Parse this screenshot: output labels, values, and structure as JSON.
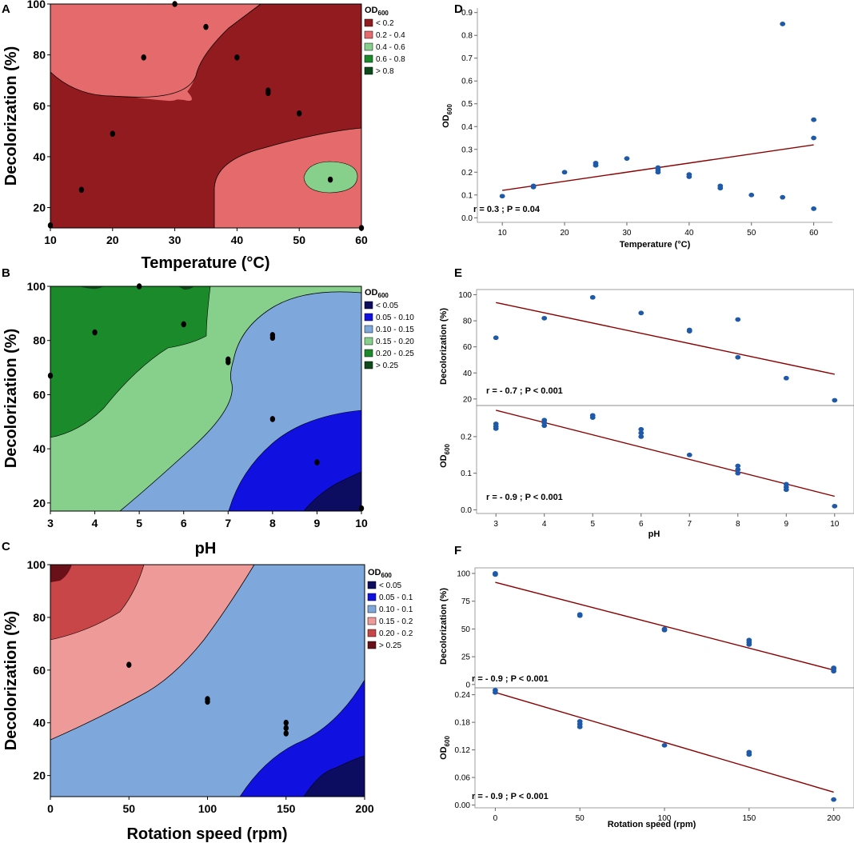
{
  "colors": {
    "od_temp": [
      "#921b1f",
      "#e56a6b",
      "#86d08c",
      "#1a8a2a",
      "#0c4a1a"
    ],
    "od_ph": [
      "#0c0c60",
      "#1010e0",
      "#7ea8dc",
      "#86d08c",
      "#1a8a2a",
      "#0e4a1a"
    ],
    "od_rot": [
      "#0c0c60",
      "#1010e0",
      "#7ea8dc",
      "#ee9a98",
      "#c84647",
      "#6a1018"
    ],
    "point": "#1f5aa8",
    "line": "#8b0000"
  },
  "chart_data": [
    {
      "panel": "A",
      "type": "contour",
      "xlabel": "Temperature (°C)",
      "ylabel": "Decolorization (%)",
      "xlim": [
        10,
        60
      ],
      "ylim": [
        12,
        100
      ],
      "xticks": [
        "10",
        "20",
        "30",
        "40",
        "50",
        "60"
      ],
      "yticks": [
        "20",
        "40",
        "60",
        "80",
        "100"
      ],
      "legend_title_main": "OD",
      "legend_title_sub": "600",
      "legend_labels": [
        "< 0.2",
        "0.2 - 0.4",
        "0.4 - 0.6",
        "0.6 - 0.8",
        "> 0.8"
      ],
      "points": [
        [
          10,
          13
        ],
        [
          15,
          27
        ],
        [
          20,
          49
        ],
        [
          25,
          79
        ],
        [
          30,
          100
        ],
        [
          35,
          91
        ],
        [
          40,
          79
        ],
        [
          45,
          66
        ],
        [
          45,
          65
        ],
        [
          50,
          57
        ],
        [
          55,
          31
        ],
        [
          60,
          12
        ]
      ]
    },
    {
      "panel": "B",
      "type": "contour",
      "xlabel": "pH",
      "ylabel": "Decolorization (%)",
      "xlim": [
        3,
        10
      ],
      "ylim": [
        17,
        100
      ],
      "xticks": [
        "3",
        "4",
        "5",
        "6",
        "7",
        "8",
        "9",
        "10"
      ],
      "yticks": [
        "20",
        "40",
        "60",
        "80",
        "100"
      ],
      "legend_title_main": "OD",
      "legend_title_sub": "600",
      "legend_labels": [
        "< 0.05",
        "0.05 - 0.10",
        "0.10 - 0.15",
        "0.15 - 0.20",
        "0.20 - 0.25",
        "> 0.25"
      ],
      "points": [
        [
          3,
          67
        ],
        [
          4,
          83
        ],
        [
          5,
          100
        ],
        [
          6,
          86
        ],
        [
          7,
          72
        ],
        [
          7,
          73
        ],
        [
          8,
          81
        ],
        [
          8,
          82
        ],
        [
          8,
          51
        ],
        [
          9,
          35
        ],
        [
          10,
          18
        ]
      ]
    },
    {
      "panel": "C",
      "type": "contour",
      "xlabel": "Rotation speed (rpm)",
      "ylabel": "Decolorization (%)",
      "xlim": [
        0,
        200
      ],
      "ylim": [
        12,
        100
      ],
      "xticks": [
        "0",
        "50",
        "100",
        "150",
        "200"
      ],
      "yticks": [
        "20",
        "40",
        "60",
        "80",
        "100"
      ],
      "legend_title_main": "OD",
      "legend_title_sub": "600",
      "legend_labels": [
        "< 0.05",
        "0.05 - 0.1",
        "0.10 - 0.1",
        "0.15 - 0.2",
        "0.20 - 0.2",
        "> 0.25"
      ],
      "points": [
        [
          50,
          62
        ],
        [
          100,
          49
        ],
        [
          100,
          48
        ],
        [
          150,
          40
        ],
        [
          150,
          38
        ],
        [
          150,
          36
        ]
      ]
    },
    {
      "panel": "D",
      "type": "scatter",
      "xlabel": "Temperature (°C)",
      "ylabel_main": "OD",
      "ylabel_sub": "600",
      "xlim": [
        6,
        63
      ],
      "ylim": [
        -0.02,
        0.92
      ],
      "xticks": [
        10,
        20,
        30,
        40,
        50,
        60
      ],
      "yticks": [
        0.0,
        0.1,
        0.2,
        0.3,
        0.4,
        0.5,
        0.6,
        0.7,
        0.8,
        0.9
      ],
      "ytick_labels": [
        "0.0",
        "0.1",
        "0.2",
        "0.3",
        "0.4",
        "0.5",
        "0.6",
        "0.7",
        "0.8",
        "0.9"
      ],
      "annotation": "r = 0.3 ; P = 0.04",
      "points": [
        [
          10,
          0.095
        ],
        [
          15,
          0.135
        ],
        [
          15,
          0.14
        ],
        [
          20,
          0.2
        ],
        [
          25,
          0.24
        ],
        [
          25,
          0.23
        ],
        [
          30,
          0.26
        ],
        [
          35,
          0.22
        ],
        [
          35,
          0.21
        ],
        [
          35,
          0.2
        ],
        [
          40,
          0.19
        ],
        [
          40,
          0.18
        ],
        [
          45,
          0.14
        ],
        [
          45,
          0.13
        ],
        [
          50,
          0.1
        ],
        [
          55,
          0.85
        ],
        [
          55,
          0.09
        ],
        [
          60,
          0.43
        ],
        [
          60,
          0.35
        ],
        [
          60,
          0.04
        ]
      ],
      "fit": [
        [
          10,
          0.12
        ],
        [
          60,
          0.32
        ]
      ]
    },
    {
      "panel": "E-top",
      "type": "scatter",
      "xlabel": "",
      "ylabel": "Decolorization (%)",
      "xlim": [
        2.6,
        10.4
      ],
      "ylim": [
        15,
        104
      ],
      "xticks": [
        3,
        4,
        5,
        6,
        7,
        8,
        9,
        10
      ],
      "yticks": [
        20,
        40,
        60,
        80,
        100
      ],
      "ytick_labels": [
        "20",
        "40",
        "60",
        "80",
        "100"
      ],
      "annotation": "r = - 0.7 ; P < 0.001",
      "points": [
        [
          3,
          67
        ],
        [
          4,
          82
        ],
        [
          5,
          98
        ],
        [
          6,
          86
        ],
        [
          7,
          73
        ],
        [
          7,
          72
        ],
        [
          8,
          81
        ],
        [
          8,
          52
        ],
        [
          9,
          36
        ],
        [
          10,
          19
        ]
      ],
      "fit": [
        [
          3,
          94
        ],
        [
          10,
          39
        ]
      ]
    },
    {
      "panel": "E-bottom",
      "type": "scatter",
      "xlabel": "pH",
      "ylabel_main": "OD",
      "ylabel_sub": "600",
      "xlim": [
        2.6,
        10.4
      ],
      "ylim": [
        -0.01,
        0.285
      ],
      "xticks": [
        3,
        4,
        5,
        6,
        7,
        8,
        9,
        10
      ],
      "xtick_labels": [
        "3",
        "4",
        "5",
        "6",
        "7",
        "8",
        "9",
        "10"
      ],
      "yticks": [
        0.0,
        0.1,
        0.2
      ],
      "ytick_labels": [
        "0.0",
        "0.1",
        "0.2"
      ],
      "annotation": "r = - 0.9 ; P < 0.001",
      "points": [
        [
          3,
          0.235
        ],
        [
          3,
          0.228
        ],
        [
          3,
          0.222
        ],
        [
          4,
          0.245
        ],
        [
          4,
          0.238
        ],
        [
          4,
          0.23
        ],
        [
          5,
          0.258
        ],
        [
          5,
          0.252
        ],
        [
          6,
          0.22
        ],
        [
          6,
          0.21
        ],
        [
          6,
          0.2
        ],
        [
          7,
          0.15
        ],
        [
          8,
          0.12
        ],
        [
          8,
          0.11
        ],
        [
          8,
          0.1
        ],
        [
          9,
          0.07
        ],
        [
          9,
          0.062
        ],
        [
          9,
          0.055
        ],
        [
          10,
          0.01
        ]
      ],
      "fit": [
        [
          3,
          0.272
        ],
        [
          10,
          0.037
        ]
      ]
    },
    {
      "panel": "F-top",
      "type": "scatter",
      "xlabel": "",
      "ylabel": "Decolorization (%)",
      "xlim": [
        -12,
        212
      ],
      "ylim": [
        -3,
        105
      ],
      "xticks": [
        0,
        50,
        100,
        150,
        200
      ],
      "yticks": [
        0,
        25,
        50,
        75,
        100
      ],
      "ytick_labels": [
        "0",
        "25",
        "50",
        "75",
        "100"
      ],
      "annotation": "r = - 0.9 ; P < 0.001",
      "points": [
        [
          0,
          100
        ],
        [
          0,
          99
        ],
        [
          50,
          63
        ],
        [
          50,
          62
        ],
        [
          100,
          50
        ],
        [
          100,
          49
        ],
        [
          150,
          40
        ],
        [
          150,
          38
        ],
        [
          150,
          36
        ],
        [
          200,
          15
        ],
        [
          200,
          14
        ],
        [
          200,
          12
        ]
      ],
      "fit": [
        [
          0,
          92
        ],
        [
          200,
          13
        ]
      ]
    },
    {
      "panel": "F-bottom",
      "type": "scatter",
      "xlabel": "Rotation speed (rpm)",
      "ylabel_main": "OD",
      "ylabel_sub": "600",
      "xlim": [
        -12,
        212
      ],
      "ylim": [
        -0.006,
        0.255
      ],
      "xticks": [
        0,
        50,
        100,
        150,
        200
      ],
      "xtick_labels": [
        "0",
        "50",
        "100",
        "150",
        "200"
      ],
      "yticks": [
        0.0,
        0.06,
        0.12,
        0.18,
        0.24
      ],
      "ytick_labels": [
        "0.00",
        "0.06",
        "0.12",
        "0.18",
        "0.24"
      ],
      "annotation": "r = - 0.9 ; P < 0.001",
      "points": [
        [
          0,
          0.25
        ],
        [
          0,
          0.245
        ],
        [
          50,
          0.182
        ],
        [
          50,
          0.176
        ],
        [
          50,
          0.17
        ],
        [
          100,
          0.13
        ],
        [
          150,
          0.115
        ],
        [
          150,
          0.11
        ],
        [
          200,
          0.012
        ]
      ],
      "fit": [
        [
          0,
          0.245
        ],
        [
          200,
          0.028
        ]
      ]
    }
  ]
}
